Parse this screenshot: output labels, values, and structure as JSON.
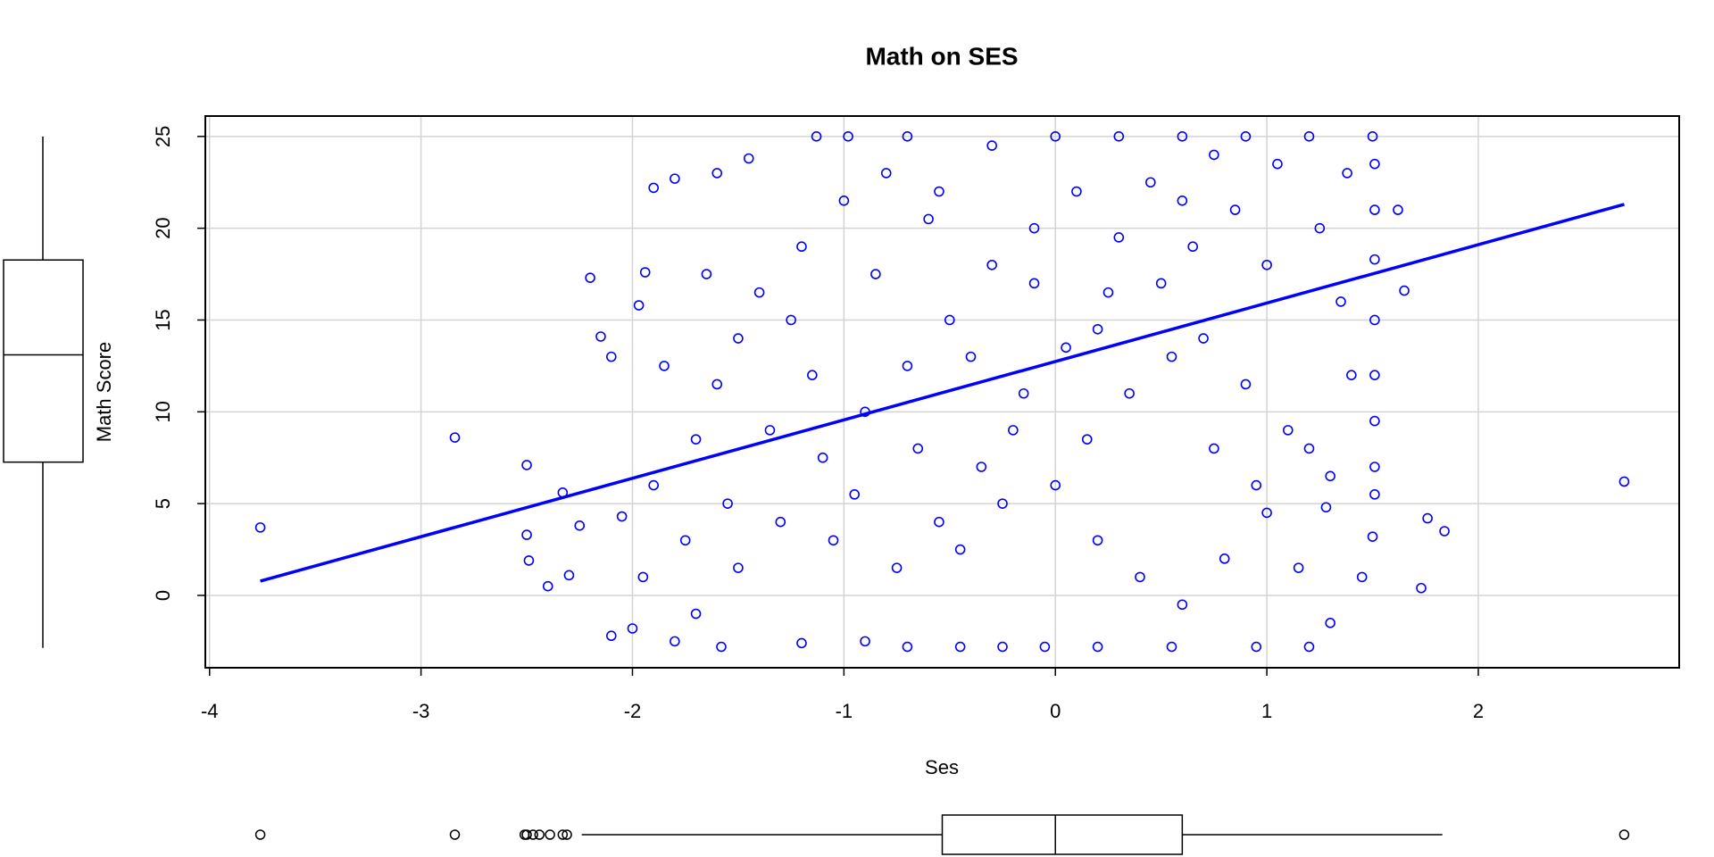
{
  "chart_data": {
    "type": "scatter",
    "title": "Math on SES",
    "xlabel": "Ses",
    "ylabel": "Math Score",
    "color": "#0000ff",
    "grid": true,
    "xlim": [
      -4.02,
      2.95
    ],
    "ylim": [
      -3.94,
      26.11
    ],
    "xticks": [
      -4,
      -3,
      -2,
      -1,
      0,
      1,
      2
    ],
    "yticks": [
      0,
      5,
      10,
      15,
      20,
      25
    ],
    "x": [
      -3.76,
      -2.84,
      2.69,
      1.84,
      1.73,
      1.76,
      -2.2,
      1.65,
      1.62,
      -2.5,
      -2.5,
      -2.49,
      -2.33,
      -2.3,
      -2.15,
      -2.1,
      -1.97,
      -1.94,
      -1.9,
      -1.8,
      -1.6,
      -1.45,
      -1.13,
      -0.98,
      -0.7,
      -0.3,
      0,
      0.3,
      0.6,
      0.9,
      1.2,
      1.5,
      1.51,
      1.51,
      1.51,
      1.51,
      1.51,
      1.51,
      1.51,
      1.51,
      1.5,
      1.45,
      1.3,
      1.2,
      0.95,
      0.55,
      0.2,
      -0.05,
      -0.25,
      -0.45,
      -0.7,
      -0.9,
      -1.2,
      -1.58,
      -1.8,
      -2,
      -2.1,
      -1.7,
      -1.5,
      -1.3,
      -1.1,
      -0.9,
      -0.7,
      -0.5,
      -0.3,
      -0.1,
      0.1,
      0.3,
      0.5,
      0.7,
      0.9,
      1.1,
      1.3,
      -1.9,
      -1.7,
      -1.6,
      -1.5,
      -1.4,
      -1.2,
      -1,
      -0.8,
      -0.6,
      -0.4,
      -0.2,
      0,
      0.2,
      0.4,
      0.6,
      0.8,
      1,
      1.2,
      1.4,
      1.35,
      1.25,
      1.05,
      0.85,
      0.65,
      0.45,
      0.25,
      0.05,
      -0.15,
      -0.35,
      -0.55,
      -0.75,
      -0.95,
      -1.15,
      -1.35,
      -1.55,
      -1.75,
      -1.95,
      -2.05,
      -2.25,
      -2.4,
      -1.85,
      -1.65,
      -1.25,
      -0.85,
      -0.65,
      -0.45,
      -0.25,
      0.15,
      0.35,
      0.55,
      0.75,
      0.95,
      1.15,
      1.28,
      1.38,
      0.75,
      -0.1,
      0.2,
      0.6,
      1,
      -1.05,
      -0.55
    ],
    "y": [
      3.7,
      8.6,
      6.2,
      3.5,
      0.4,
      4.2,
      17.3,
      16.6,
      21,
      7.1,
      3.3,
      1.9,
      5.6,
      1.1,
      14.1,
      13,
      15.8,
      17.6,
      22.2,
      22.7,
      23,
      23.8,
      25,
      25,
      25,
      24.5,
      25,
      25,
      25,
      25,
      25,
      25,
      23.5,
      21,
      18.3,
      15,
      12,
      9.5,
      7,
      5.5,
      3.2,
      1,
      -1.5,
      -2.8,
      -2.8,
      -2.8,
      -2.8,
      -2.8,
      -2.8,
      -2.8,
      -2.8,
      -2.5,
      -2.6,
      -2.8,
      -2.5,
      -1.8,
      -2.2,
      -1,
      1.5,
      4,
      7.5,
      10,
      12.5,
      15,
      18,
      20,
      22,
      19.5,
      17,
      14,
      11.5,
      9,
      6.5,
      6,
      8.5,
      11.5,
      14,
      16.5,
      19,
      21.5,
      23,
      20.5,
      13,
      9,
      6,
      3,
      1,
      -0.5,
      2,
      4.5,
      8,
      12,
      16,
      20,
      23.5,
      21,
      19,
      22.5,
      16.5,
      13.5,
      11,
      7,
      4,
      1.5,
      5.5,
      12,
      9,
      5,
      3,
      1,
      4.3,
      3.8,
      0.5,
      12.5,
      17.5,
      15,
      17.5,
      8,
      2.5,
      5,
      8.5,
      11,
      13,
      8,
      6,
      1.5,
      4.8,
      23,
      24,
      17,
      14.5,
      21.5,
      18,
      3,
      22
    ],
    "fit": {
      "x": [
        -3.76,
        2.69
      ],
      "y": [
        0.78,
        21.3
      ]
    },
    "y_boxplot": {
      "whisker_low": -2.86,
      "q1": 7.26,
      "median": 13.1,
      "q3": 18.27,
      "whisker_high": 25
    },
    "x_boxplot": {
      "whisker_low": -2.24,
      "q1": -0.535,
      "median": 0,
      "q3": 0.6,
      "whisker_high": 1.83,
      "outliers": [
        -3.76,
        -2.84,
        -2.51,
        -2.5,
        -2.47,
        -2.44,
        -2.39,
        -2.33,
        -2.31,
        2.69
      ]
    }
  }
}
